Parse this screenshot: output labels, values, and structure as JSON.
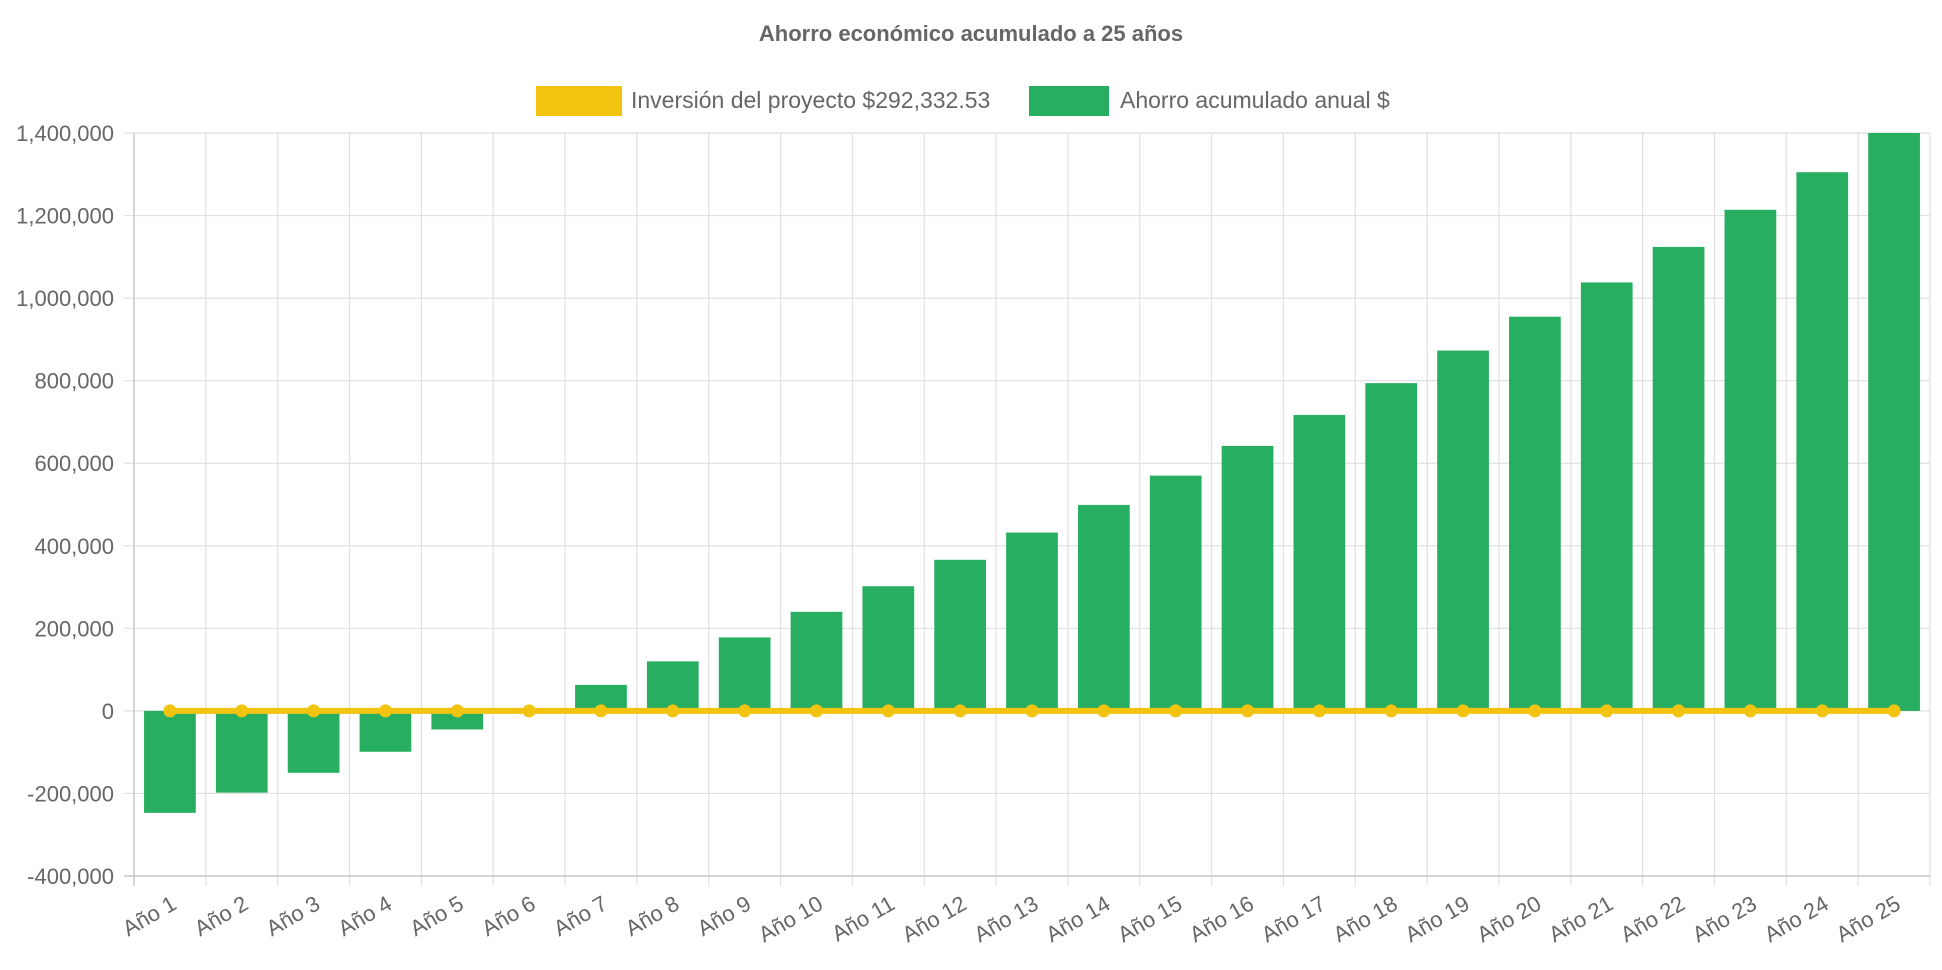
{
  "chart_data": {
    "type": "bar",
    "title": "Ahorro económico acumulado a 25 años",
    "categories": [
      "Año 1",
      "Año 2",
      "Año 3",
      "Año 4",
      "Año 5",
      "Año 6",
      "Año 7",
      "Año 8",
      "Año 9",
      "Año 10",
      "Año 11",
      "Año 12",
      "Año 13",
      "Año 14",
      "Año 15",
      "Año 16",
      "Año 17",
      "Año 18",
      "Año 19",
      "Año 20",
      "Año 21",
      "Año 22",
      "Año 23",
      "Año 24",
      "Año 25"
    ],
    "series": [
      {
        "name": "Inversión del proyecto $292,332.53",
        "kind": "line",
        "color": "#f2c40f",
        "values": [
          0,
          0,
          0,
          0,
          0,
          0,
          0,
          0,
          0,
          0,
          0,
          0,
          0,
          0,
          0,
          0,
          0,
          0,
          0,
          0,
          0,
          0,
          0,
          0,
          0
        ]
      },
      {
        "name": "Ahorro acumulado anual $",
        "kind": "bar",
        "color": "#27ae60",
        "values": [
          -247000,
          -198000,
          -150000,
          -99000,
          -45000,
          5000,
          63000,
          120000,
          178000,
          240000,
          302000,
          366000,
          432000,
          499000,
          570000,
          642000,
          717000,
          794000,
          873000,
          955000,
          1038000,
          1124000,
          1214000,
          1305000,
          1400000
        ]
      }
    ],
    "ylim": [
      -400000,
      1400000
    ],
    "yticks": [
      1400000,
      1200000,
      1000000,
      800000,
      600000,
      400000,
      200000,
      0,
      -200000,
      -400000
    ],
    "ytick_labels": [
      "1,400,000",
      "1,200,000",
      "1,000,000",
      "800,000",
      "600,000",
      "400,000",
      "200,000",
      "0",
      "-200,000",
      "-400,000"
    ],
    "grid": true,
    "legend_position": "top"
  }
}
